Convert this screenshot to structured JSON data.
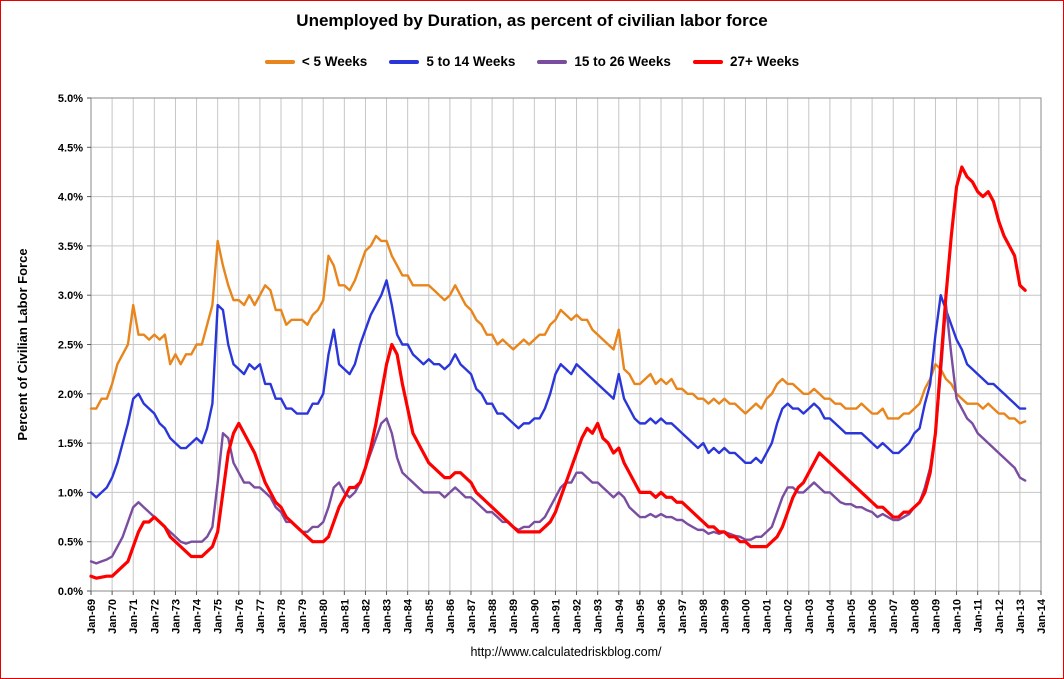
{
  "footer": {
    "url": "http://www.calculatedriskblog.com/"
  },
  "chart_data": {
    "type": "line",
    "title": "Unemployed by Duration, as percent of civilian labor force",
    "xlabel": "",
    "ylabel": "Percent of Civilian Labor Force",
    "ylim": [
      0,
      5
    ],
    "ytick_step": 0.5,
    "ytick_labels": [
      "0.0%",
      "0.5%",
      "1.0%",
      "1.5%",
      "2.0%",
      "2.5%",
      "3.0%",
      "3.5%",
      "4.0%",
      "4.5%",
      "5.0%"
    ],
    "x_range": [
      1969,
      2014
    ],
    "x_start": 1969,
    "x_step": 0.25,
    "grid": true,
    "legend_position": "top",
    "gridline_color": "#c6c6c6",
    "frame_color": "#e60000",
    "x_tick_labels": [
      "Jan-69",
      "Jan-70",
      "Jan-71",
      "Jan-72",
      "Jan-73",
      "Jan-74",
      "Jan-75",
      "Jan-76",
      "Jan-77",
      "Jan-78",
      "Jan-79",
      "Jan-80",
      "Jan-81",
      "Jan-82",
      "Jan-83",
      "Jan-84",
      "Jan-85",
      "Jan-86",
      "Jan-87",
      "Jan-88",
      "Jan-89",
      "Jan-90",
      "Jan-91",
      "Jan-92",
      "Jan-93",
      "Jan-94",
      "Jan-95",
      "Jan-96",
      "Jan-97",
      "Jan-98",
      "Jan-99",
      "Jan-00",
      "Jan-01",
      "Jan-02",
      "Jan-03",
      "Jan-04",
      "Jan-05",
      "Jan-06",
      "Jan-07",
      "Jan-08",
      "Jan-09",
      "Jan-10",
      "Jan-11",
      "Jan-12",
      "Jan-13",
      "Jan-14"
    ],
    "series": [
      {
        "id": "lt5",
        "name": "< 5 Weeks",
        "color": "#E8851C",
        "stroke_width": 2.4,
        "values": [
          1.85,
          1.85,
          1.95,
          1.95,
          2.1,
          2.3,
          2.4,
          2.5,
          2.9,
          2.6,
          2.6,
          2.55,
          2.6,
          2.55,
          2.6,
          2.3,
          2.4,
          2.3,
          2.4,
          2.4,
          2.5,
          2.5,
          2.7,
          2.9,
          3.55,
          3.3,
          3.1,
          2.95,
          2.95,
          2.9,
          3.0,
          2.9,
          3.0,
          3.1,
          3.05,
          2.85,
          2.85,
          2.7,
          2.75,
          2.75,
          2.75,
          2.7,
          2.8,
          2.85,
          2.95,
          3.4,
          3.3,
          3.1,
          3.1,
          3.05,
          3.15,
          3.3,
          3.45,
          3.5,
          3.6,
          3.55,
          3.55,
          3.4,
          3.3,
          3.2,
          3.2,
          3.1,
          3.1,
          3.1,
          3.1,
          3.05,
          3.0,
          2.95,
          3.0,
          3.1,
          3.0,
          2.9,
          2.85,
          2.75,
          2.7,
          2.6,
          2.6,
          2.5,
          2.55,
          2.5,
          2.45,
          2.5,
          2.55,
          2.5,
          2.55,
          2.6,
          2.6,
          2.7,
          2.75,
          2.85,
          2.8,
          2.75,
          2.8,
          2.75,
          2.75,
          2.65,
          2.6,
          2.55,
          2.5,
          2.45,
          2.65,
          2.25,
          2.2,
          2.1,
          2.1,
          2.15,
          2.2,
          2.1,
          2.15,
          2.1,
          2.15,
          2.05,
          2.05,
          2.0,
          2.0,
          1.95,
          1.95,
          1.9,
          1.95,
          1.9,
          1.95,
          1.9,
          1.9,
          1.85,
          1.8,
          1.85,
          1.9,
          1.85,
          1.95,
          2.0,
          2.1,
          2.15,
          2.1,
          2.1,
          2.05,
          2.0,
          2.0,
          2.05,
          2.0,
          1.95,
          1.95,
          1.9,
          1.9,
          1.85,
          1.85,
          1.85,
          1.9,
          1.85,
          1.8,
          1.8,
          1.85,
          1.75,
          1.75,
          1.75,
          1.8,
          1.8,
          1.85,
          1.9,
          2.05,
          2.15,
          2.3,
          2.25,
          2.15,
          2.1,
          2.0,
          1.95,
          1.9,
          1.9,
          1.9,
          1.85,
          1.9,
          1.85,
          1.8,
          1.8,
          1.75,
          1.75,
          1.7,
          1.72
        ]
      },
      {
        "id": "w5to14",
        "name": "5 to 14 Weeks",
        "color": "#2B36D9",
        "stroke_width": 2.4,
        "values": [
          1.0,
          0.95,
          1.0,
          1.05,
          1.15,
          1.3,
          1.5,
          1.7,
          1.95,
          2.0,
          1.9,
          1.85,
          1.8,
          1.7,
          1.65,
          1.55,
          1.5,
          1.45,
          1.45,
          1.5,
          1.55,
          1.5,
          1.65,
          1.9,
          2.9,
          2.85,
          2.5,
          2.3,
          2.25,
          2.2,
          2.3,
          2.25,
          2.3,
          2.1,
          2.1,
          1.95,
          1.95,
          1.85,
          1.85,
          1.8,
          1.8,
          1.8,
          1.9,
          1.9,
          2.0,
          2.4,
          2.65,
          2.3,
          2.25,
          2.2,
          2.3,
          2.5,
          2.65,
          2.8,
          2.9,
          3.0,
          3.15,
          2.9,
          2.6,
          2.5,
          2.5,
          2.4,
          2.35,
          2.3,
          2.35,
          2.3,
          2.3,
          2.25,
          2.3,
          2.4,
          2.3,
          2.25,
          2.2,
          2.05,
          2.0,
          1.9,
          1.9,
          1.8,
          1.8,
          1.75,
          1.7,
          1.65,
          1.7,
          1.7,
          1.75,
          1.75,
          1.85,
          2.0,
          2.2,
          2.3,
          2.25,
          2.2,
          2.3,
          2.25,
          2.2,
          2.15,
          2.1,
          2.05,
          2.0,
          1.95,
          2.2,
          1.95,
          1.85,
          1.75,
          1.7,
          1.7,
          1.75,
          1.7,
          1.75,
          1.7,
          1.7,
          1.65,
          1.6,
          1.55,
          1.5,
          1.45,
          1.5,
          1.4,
          1.45,
          1.4,
          1.45,
          1.4,
          1.4,
          1.35,
          1.3,
          1.3,
          1.35,
          1.3,
          1.4,
          1.5,
          1.7,
          1.85,
          1.9,
          1.85,
          1.85,
          1.8,
          1.85,
          1.9,
          1.85,
          1.75,
          1.75,
          1.7,
          1.65,
          1.6,
          1.6,
          1.6,
          1.6,
          1.55,
          1.5,
          1.45,
          1.5,
          1.45,
          1.4,
          1.4,
          1.45,
          1.5,
          1.6,
          1.65,
          1.9,
          2.1,
          2.6,
          3.0,
          2.85,
          2.7,
          2.55,
          2.45,
          2.3,
          2.25,
          2.2,
          2.15,
          2.1,
          2.1,
          2.05,
          2.0,
          1.95,
          1.9,
          1.85,
          1.85
        ]
      },
      {
        "id": "w15to26",
        "name": "15 to 26 Weeks",
        "color": "#7A4DA0",
        "stroke_width": 2.4,
        "values": [
          0.3,
          0.28,
          0.3,
          0.32,
          0.35,
          0.45,
          0.55,
          0.7,
          0.85,
          0.9,
          0.85,
          0.8,
          0.75,
          0.7,
          0.65,
          0.6,
          0.55,
          0.5,
          0.48,
          0.5,
          0.5,
          0.5,
          0.55,
          0.65,
          1.1,
          1.6,
          1.55,
          1.3,
          1.2,
          1.1,
          1.1,
          1.05,
          1.05,
          1.0,
          0.95,
          0.85,
          0.8,
          0.7,
          0.7,
          0.65,
          0.6,
          0.6,
          0.65,
          0.65,
          0.7,
          0.85,
          1.05,
          1.1,
          1.0,
          0.95,
          1.0,
          1.1,
          1.25,
          1.4,
          1.55,
          1.7,
          1.75,
          1.6,
          1.35,
          1.2,
          1.15,
          1.1,
          1.05,
          1.0,
          1.0,
          1.0,
          1.0,
          0.95,
          1.0,
          1.05,
          1.0,
          0.95,
          0.95,
          0.9,
          0.85,
          0.8,
          0.8,
          0.75,
          0.7,
          0.7,
          0.65,
          0.62,
          0.65,
          0.65,
          0.7,
          0.7,
          0.75,
          0.85,
          0.95,
          1.05,
          1.1,
          1.1,
          1.2,
          1.2,
          1.15,
          1.1,
          1.1,
          1.05,
          1.0,
          0.95,
          1.0,
          0.95,
          0.85,
          0.8,
          0.75,
          0.75,
          0.78,
          0.75,
          0.78,
          0.75,
          0.75,
          0.72,
          0.72,
          0.68,
          0.65,
          0.62,
          0.62,
          0.58,
          0.6,
          0.58,
          0.6,
          0.58,
          0.56,
          0.55,
          0.52,
          0.52,
          0.55,
          0.55,
          0.6,
          0.65,
          0.8,
          0.95,
          1.05,
          1.05,
          1.0,
          1.0,
          1.05,
          1.1,
          1.05,
          1.0,
          1.0,
          0.95,
          0.9,
          0.88,
          0.88,
          0.85,
          0.85,
          0.82,
          0.8,
          0.75,
          0.78,
          0.75,
          0.72,
          0.72,
          0.75,
          0.78,
          0.85,
          0.9,
          1.05,
          1.25,
          1.6,
          2.2,
          2.9,
          2.4,
          1.95,
          1.85,
          1.75,
          1.7,
          1.6,
          1.55,
          1.5,
          1.45,
          1.4,
          1.35,
          1.3,
          1.25,
          1.15,
          1.12
        ]
      },
      {
        "id": "w27plus",
        "name": "27+ Weeks",
        "color": "#FF0000",
        "stroke_width": 3.2,
        "values": [
          0.15,
          0.13,
          0.14,
          0.15,
          0.15,
          0.2,
          0.25,
          0.3,
          0.45,
          0.6,
          0.7,
          0.7,
          0.75,
          0.7,
          0.65,
          0.55,
          0.5,
          0.45,
          0.4,
          0.35,
          0.35,
          0.35,
          0.4,
          0.45,
          0.6,
          1.0,
          1.4,
          1.6,
          1.7,
          1.6,
          1.5,
          1.4,
          1.25,
          1.1,
          1.0,
          0.9,
          0.85,
          0.75,
          0.7,
          0.65,
          0.6,
          0.55,
          0.5,
          0.5,
          0.5,
          0.55,
          0.7,
          0.85,
          0.95,
          1.05,
          1.05,
          1.1,
          1.25,
          1.45,
          1.7,
          2.0,
          2.3,
          2.5,
          2.4,
          2.1,
          1.85,
          1.6,
          1.5,
          1.4,
          1.3,
          1.25,
          1.2,
          1.15,
          1.15,
          1.2,
          1.2,
          1.15,
          1.1,
          1.0,
          0.95,
          0.9,
          0.85,
          0.8,
          0.75,
          0.7,
          0.65,
          0.6,
          0.6,
          0.6,
          0.6,
          0.6,
          0.65,
          0.7,
          0.8,
          0.95,
          1.1,
          1.25,
          1.4,
          1.55,
          1.65,
          1.6,
          1.7,
          1.55,
          1.5,
          1.4,
          1.45,
          1.3,
          1.2,
          1.1,
          1.0,
          1.0,
          1.0,
          0.95,
          1.0,
          0.95,
          0.95,
          0.9,
          0.9,
          0.85,
          0.8,
          0.75,
          0.7,
          0.65,
          0.65,
          0.6,
          0.6,
          0.55,
          0.55,
          0.5,
          0.5,
          0.45,
          0.45,
          0.45,
          0.45,
          0.5,
          0.55,
          0.65,
          0.8,
          0.95,
          1.05,
          1.1,
          1.2,
          1.3,
          1.4,
          1.35,
          1.3,
          1.25,
          1.2,
          1.15,
          1.1,
          1.05,
          1.0,
          0.95,
          0.9,
          0.85,
          0.85,
          0.8,
          0.75,
          0.75,
          0.8,
          0.8,
          0.85,
          0.9,
          1.0,
          1.2,
          1.6,
          2.3,
          3.0,
          3.6,
          4.1,
          4.3,
          4.2,
          4.15,
          4.05,
          4.0,
          4.05,
          3.95,
          3.75,
          3.6,
          3.5,
          3.4,
          3.1,
          3.05
        ]
      }
    ]
  }
}
